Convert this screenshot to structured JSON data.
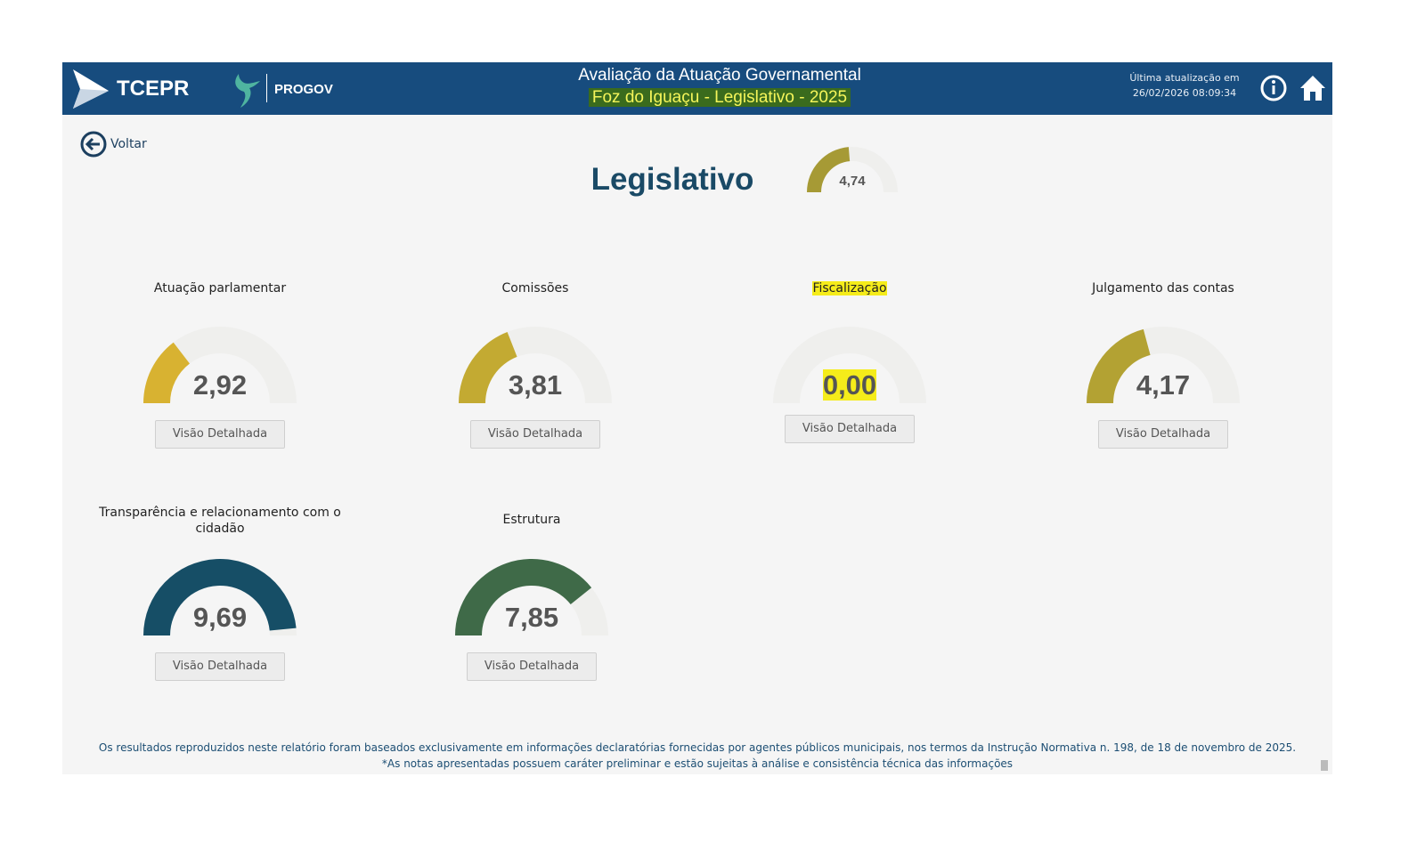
{
  "header": {
    "logo": "TCEPR",
    "logo2": "PROGOV",
    "title": "Avaliação da Atuação Governamental",
    "subtitle": "Foz do Iguaçu - Legislativo - 2025",
    "update_label": "Última atualização em",
    "update_value": "26/02/2026 08:09:34",
    "icons": [
      "info-icon",
      "home-icon"
    ]
  },
  "back_label": "Voltar",
  "page_title": "Legislativo",
  "gauge_max": 10,
  "overall": {
    "value": 4.74,
    "label": "4,74",
    "color": "#a69a35"
  },
  "track_color": "#efefed",
  "button_label": "Visão Detalhada",
  "gauges": [
    {
      "title": "Atuação parlamentar",
      "value": 2.92,
      "label": "2,92",
      "color": "#d8b231"
    },
    {
      "title": "Comissões",
      "value": 3.81,
      "label": "3,81",
      "color": "#c3aa32"
    },
    {
      "title": "Fiscalização",
      "value": 0.0,
      "label": "0,00",
      "color": "#c3aa32"
    },
    {
      "title": "Julgamento das contas",
      "value": 4.17,
      "label": "4,17",
      "color": "#b3a233"
    },
    {
      "title": "Transparência e relacionamento com o cidadão",
      "value": 9.69,
      "label": "9,69",
      "color": "#164e66"
    },
    {
      "title": "Estrutura",
      "value": 7.85,
      "label": "7,85",
      "color": "#3f6a48"
    }
  ],
  "footer": {
    "line1": "Os resultados reproduzidos neste relatório foram baseados exclusivamente em informações declaratórias fornecidas por agentes públicos municipais, nos termos da Instrução Normativa n. 198, de 18 de novembro de 2025.",
    "line2": "*As notas apresentadas possuem caráter preliminar e estão sujeitas à análise e consistência técnica das informações"
  }
}
